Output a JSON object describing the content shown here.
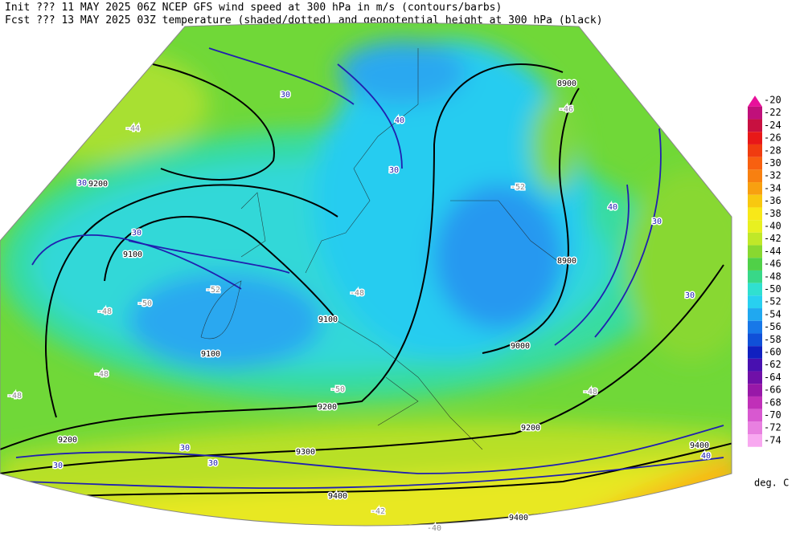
{
  "header": {
    "line1": "Init  ??? 11 MAY 2025 06Z  NCEP GFS wind speed at 300 hPa in m/s (contours/barbs)",
    "line2": "Fcst ??? 13 MAY 2025 03Z  temperature (shaded/dotted) and geopotential height at 300 hPa (black)"
  },
  "colorbar": {
    "levels": [
      -20,
      -22,
      -24,
      -26,
      -28,
      -30,
      -32,
      -34,
      -36,
      -38,
      -40,
      -42,
      -44,
      -46,
      -48,
      -50,
      -52,
      -54,
      -56,
      -58,
      -60,
      -62,
      -64,
      -66,
      -68,
      -70,
      -72,
      -74
    ],
    "colors": [
      "#e8109a",
      "#c0107a",
      "#c81040",
      "#e81818",
      "#f03c10",
      "#f86010",
      "#f88010",
      "#f8a010",
      "#f8c810",
      "#f8e818",
      "#e8f020",
      "#c0e828",
      "#88d830",
      "#50d048",
      "#38d888",
      "#30e0d0",
      "#28d0f0",
      "#20a8f0",
      "#1878e8",
      "#1050d8",
      "#1020c0",
      "#4810b0",
      "#7010a8",
      "#9818a8",
      "#c030b8",
      "#d858d0",
      "#e880e0",
      "#f8a8f0"
    ],
    "unit": "deg. C"
  },
  "contour_labels": [
    "9200",
    "9100",
    "9100",
    "9200",
    "9200",
    "9300",
    "9400",
    "9400",
    "9200",
    "9000",
    "8900",
    "8900",
    "9100",
    "9400",
    "30",
    "30",
    "30",
    "30",
    "40",
    "40",
    "30",
    "30",
    "30",
    "30",
    "40",
    "30",
    "-48",
    "-50",
    "-52",
    "-48",
    "-46",
    "-52",
    "-44",
    "-48",
    "-48",
    "-48",
    "-40",
    "-42",
    "-50"
  ]
}
